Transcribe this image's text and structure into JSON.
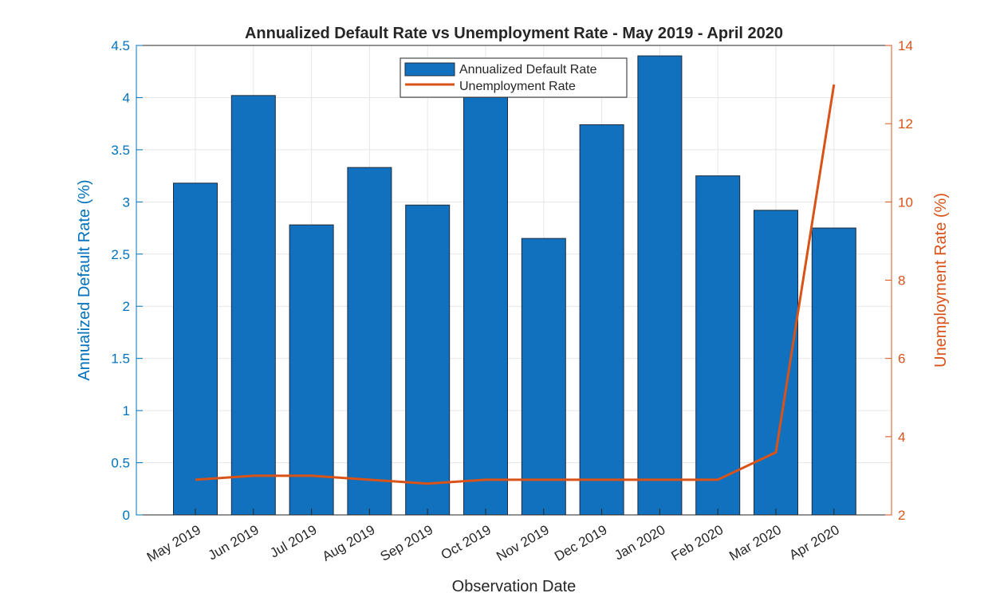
{
  "colors": {
    "bar": "#1171be",
    "bar_edge": "#1f2b3a",
    "line": "#d95319",
    "left_axis": "#0072bd",
    "right_axis": "#d95319",
    "text": "#262626"
  },
  "chart_data": {
    "type": "bar",
    "title": "Annualized Default Rate vs Unemployment Rate - May 2019 - April 2020",
    "xlabel": "Observation Date",
    "ylabel_left": "Annualized Default Rate (%)",
    "ylabel_right": "Unemployment Rate (%)",
    "categories": [
      "May 2019",
      "Jun 2019",
      "Jul 2019",
      "Aug 2019",
      "Sep 2019",
      "Oct 2019",
      "Nov 2019",
      "Dec 2019",
      "Jan 2020",
      "Feb 2020",
      "Mar 2020",
      "Apr 2020"
    ],
    "ylim_left": [
      0,
      4.5
    ],
    "yticks_left": [
      "0",
      "0.5",
      "1",
      "1.5",
      "2",
      "2.5",
      "3",
      "3.5",
      "4",
      "4.5"
    ],
    "ylim_right": [
      2,
      14
    ],
    "yticks_right": [
      "2",
      "4",
      "6",
      "8",
      "10",
      "12",
      "14"
    ],
    "grid": true,
    "legend_position": "top",
    "series": [
      {
        "name": "Annualized Default Rate",
        "type": "bar",
        "axis": "left",
        "values": [
          3.18,
          4.02,
          2.78,
          3.33,
          2.97,
          4.05,
          2.65,
          3.74,
          4.4,
          3.25,
          2.92,
          2.75
        ]
      },
      {
        "name": "Unemployment Rate",
        "type": "line",
        "axis": "right",
        "values": [
          2.9,
          3.0,
          3.0,
          2.9,
          2.8,
          2.9,
          2.9,
          2.9,
          2.9,
          2.9,
          3.6,
          13.0
        ]
      }
    ]
  }
}
